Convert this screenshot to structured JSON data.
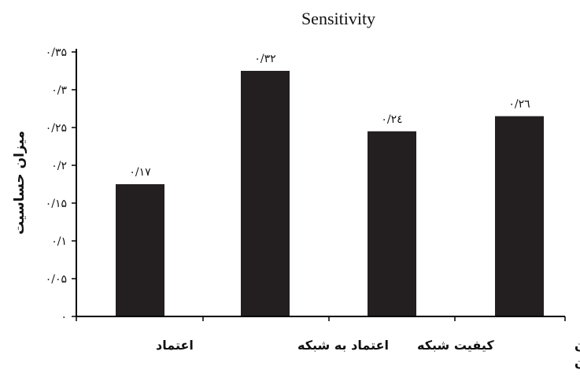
{
  "chart_data": {
    "type": "bar",
    "title": "Sensitivity",
    "ylabel": "میزان حساسیت",
    "xlabel": "",
    "categories": [
      "اعتماد",
      "اعتماد به شبکه",
      "کیفیت شبکه",
      "ویژگی شهروندان"
    ],
    "category_label_lines": [
      [
        "اعتماد"
      ],
      [
        "اعتماد به شبکه"
      ],
      [
        "کیفیت شبکه"
      ],
      [
        "ویژگی شهروندان",
        "شهروندان"
      ]
    ],
    "values": [
      0.17,
      0.32,
      0.24,
      0.26
    ],
    "bar_heights": [
      0.175,
      0.325,
      0.245,
      0.265
    ],
    "data_labels": [
      "۰/۱۷",
      "۰/۳۲",
      "۰/۲٤",
      "۰/۲٦"
    ],
    "ylim": [
      0,
      0.35
    ],
    "yticks": [
      0,
      0.05,
      0.1,
      0.15,
      0.2,
      0.25,
      0.3,
      0.35
    ],
    "ytick_labels": [
      "۰",
      "۰/۰۵",
      "۰/۱",
      "۰/۱۵",
      "۰/۲",
      "۰/۲۵",
      "۰/۳",
      "۰/۳۵"
    ],
    "grid": false,
    "legend": "none",
    "bar_color": "#231f20",
    "axis_color": "#000000"
  }
}
